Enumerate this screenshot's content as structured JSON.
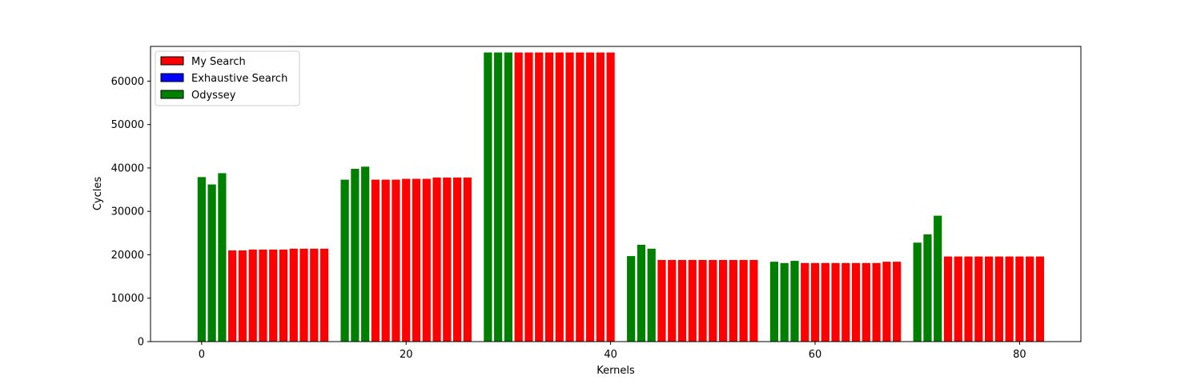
{
  "chart_data": {
    "type": "bar",
    "title": "",
    "xlabel": "Kernels",
    "ylabel": "Cycles",
    "xlim": [
      -5,
      86
    ],
    "ylim": [
      0,
      68000
    ],
    "xticks": [
      0,
      20,
      40,
      60,
      80
    ],
    "yticks": [
      0,
      10000,
      20000,
      30000,
      40000,
      50000,
      60000
    ],
    "grid": false,
    "legend_position": "top-left",
    "series": [
      {
        "name": "My Search",
        "color": "#ff0000",
        "x": [
          3,
          4,
          5,
          6,
          7,
          8,
          9,
          10,
          11,
          12,
          17,
          18,
          19,
          20,
          21,
          22,
          23,
          24,
          25,
          26,
          31,
          32,
          33,
          34,
          35,
          36,
          37,
          38,
          39,
          40,
          45,
          46,
          47,
          48,
          49,
          50,
          51,
          52,
          53,
          54,
          59,
          60,
          61,
          62,
          63,
          64,
          65,
          66,
          67,
          68,
          73,
          74,
          75,
          76,
          77,
          78,
          79,
          80,
          81,
          82
        ],
        "values": [
          21000,
          21000,
          21200,
          21200,
          21200,
          21200,
          21400,
          21400,
          21400,
          21400,
          37300,
          37300,
          37300,
          37500,
          37500,
          37500,
          37800,
          37800,
          37800,
          37800,
          66600,
          66600,
          66600,
          66600,
          66600,
          66600,
          66600,
          66600,
          66600,
          66600,
          18800,
          18800,
          18800,
          18800,
          18800,
          18800,
          18800,
          18800,
          18800,
          18800,
          18100,
          18100,
          18100,
          18100,
          18100,
          18100,
          18100,
          18100,
          18400,
          18400,
          19600,
          19600,
          19600,
          19600,
          19600,
          19600,
          19600,
          19600,
          19600,
          19600
        ]
      },
      {
        "name": "Exhaustive Search",
        "color": "#0000ff",
        "x": [],
        "values": []
      },
      {
        "name": "Odyssey",
        "color": "#008000",
        "x": [
          0,
          1,
          2,
          14,
          15,
          16,
          28,
          29,
          30,
          42,
          43,
          44,
          56,
          57,
          58,
          70,
          71,
          72
        ],
        "values": [
          37900,
          36200,
          38800,
          37300,
          39800,
          40300,
          66600,
          66600,
          66600,
          19700,
          22300,
          21400,
          18400,
          18100,
          18600,
          22800,
          24700,
          29000
        ]
      }
    ]
  }
}
